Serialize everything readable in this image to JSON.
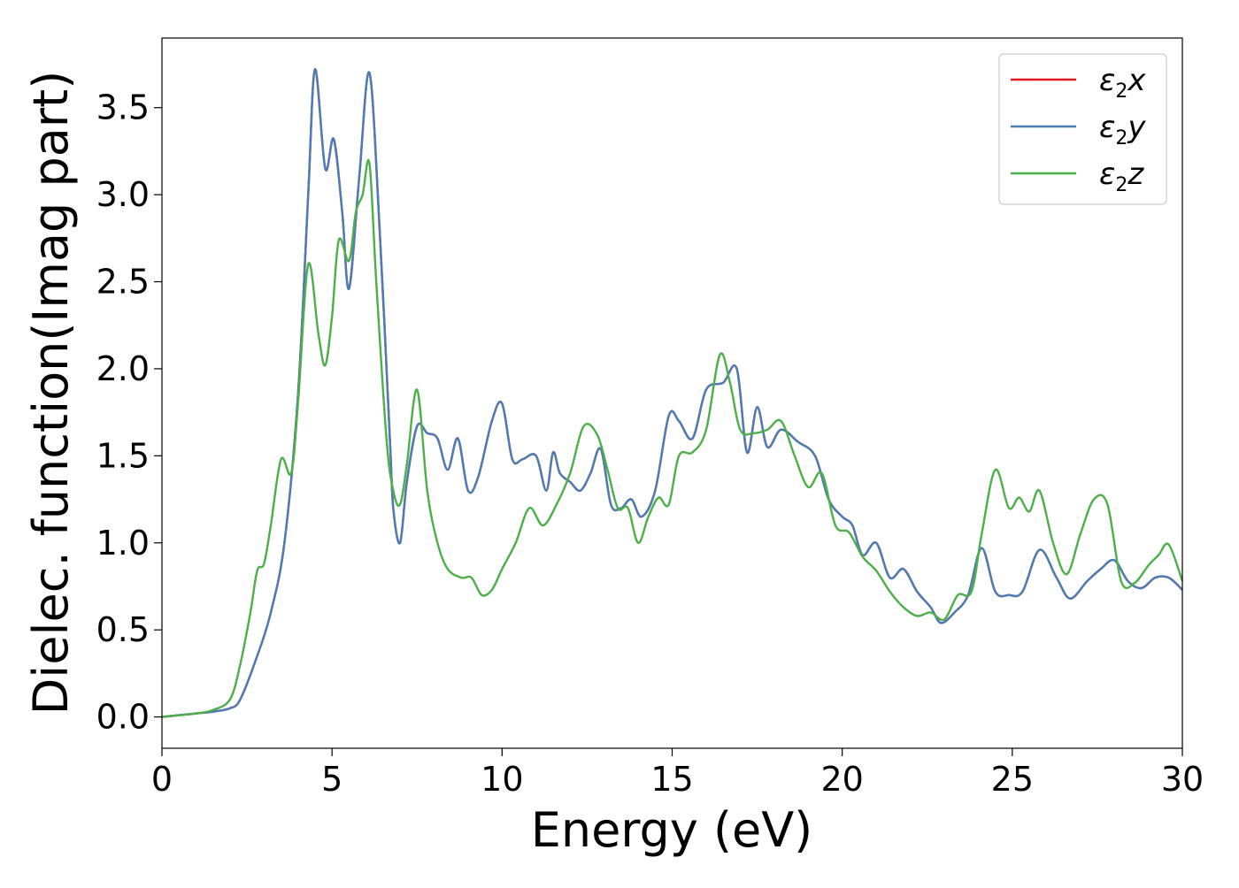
{
  "chart_data": {
    "type": "line",
    "title": "",
    "xlabel": "Energy (eV)",
    "ylabel": "Dielec. function(Imag part)",
    "xlim": [
      0,
      30
    ],
    "ylim": [
      -0.18,
      3.9
    ],
    "xticks": [
      0,
      5,
      10,
      15,
      20,
      25,
      30
    ],
    "yticks": [
      0.0,
      0.5,
      1.0,
      1.5,
      2.0,
      2.5,
      3.0,
      3.5
    ],
    "xtick_labels": [
      "0",
      "5",
      "10",
      "15",
      "20",
      "25",
      "30"
    ],
    "ytick_labels": [
      "0.0",
      "0.5",
      "1.0",
      "1.5",
      "2.0",
      "2.5",
      "3.0",
      "3.5"
    ],
    "grid": false,
    "legend_position": "top-right",
    "series": [
      {
        "name": "ε2x",
        "legend_base": "ε",
        "legend_sub": "2",
        "legend_var": "x",
        "color": "#e41a1c",
        "x": [
          0,
          1,
          1.5,
          2,
          2.3,
          2.8,
          3.2,
          3.6,
          4.0,
          4.3,
          4.5,
          4.8,
          5.05,
          5.3,
          5.5,
          5.8,
          6.1,
          6.4,
          6.7,
          6.8,
          7.0,
          7.2,
          7.5,
          7.8,
          8.1,
          8.4,
          8.7,
          9.0,
          9.3,
          9.7,
          10.0,
          10.3,
          10.6,
          11.0,
          11.3,
          11.5,
          11.7,
          12.0,
          12.3,
          12.6,
          12.9,
          13.2,
          13.5,
          13.8,
          14.1,
          14.5,
          14.9,
          15.2,
          15.6,
          16.0,
          16.5,
          16.9,
          17.2,
          17.5,
          17.8,
          18.2,
          18.7,
          19.2,
          19.6,
          20.0,
          20.3,
          20.6,
          21.0,
          21.4,
          21.8,
          22.2,
          22.6,
          22.9,
          23.3,
          23.7,
          24.1,
          24.5,
          24.9,
          25.3,
          25.8,
          26.3,
          26.7,
          27.2,
          27.6,
          28.0,
          28.4,
          28.8,
          29.2,
          29.6,
          30.0
        ],
        "values": [
          0.0,
          0.02,
          0.03,
          0.05,
          0.1,
          0.35,
          0.6,
          1.0,
          1.85,
          3.0,
          3.72,
          3.15,
          3.32,
          2.9,
          2.46,
          3.1,
          3.7,
          2.8,
          1.6,
          1.2,
          1.0,
          1.35,
          1.67,
          1.63,
          1.6,
          1.42,
          1.6,
          1.3,
          1.38,
          1.7,
          1.8,
          1.48,
          1.48,
          1.5,
          1.3,
          1.52,
          1.4,
          1.35,
          1.3,
          1.4,
          1.54,
          1.22,
          1.2,
          1.25,
          1.15,
          1.3,
          1.73,
          1.7,
          1.6,
          1.88,
          1.92,
          2.0,
          1.52,
          1.78,
          1.55,
          1.65,
          1.58,
          1.5,
          1.25,
          1.15,
          1.1,
          0.93,
          1.0,
          0.8,
          0.85,
          0.72,
          0.63,
          0.54,
          0.6,
          0.7,
          0.97,
          0.72,
          0.7,
          0.72,
          0.96,
          0.8,
          0.68,
          0.78,
          0.85,
          0.9,
          0.78,
          0.74,
          0.8,
          0.8,
          0.73
        ]
      },
      {
        "name": "ε2y",
        "legend_base": "ε",
        "legend_sub": "2",
        "legend_var": "y",
        "color": "#4a7db5",
        "x": [
          0,
          1,
          1.5,
          2,
          2.3,
          2.8,
          3.2,
          3.6,
          4.0,
          4.3,
          4.5,
          4.8,
          5.05,
          5.3,
          5.5,
          5.8,
          6.1,
          6.4,
          6.7,
          6.8,
          7.0,
          7.2,
          7.5,
          7.8,
          8.1,
          8.4,
          8.7,
          9.0,
          9.3,
          9.7,
          10.0,
          10.3,
          10.6,
          11.0,
          11.3,
          11.5,
          11.7,
          12.0,
          12.3,
          12.6,
          12.9,
          13.2,
          13.5,
          13.8,
          14.1,
          14.5,
          14.9,
          15.2,
          15.6,
          16.0,
          16.5,
          16.9,
          17.2,
          17.5,
          17.8,
          18.2,
          18.7,
          19.2,
          19.6,
          20.0,
          20.3,
          20.6,
          21.0,
          21.4,
          21.8,
          22.2,
          22.6,
          22.9,
          23.3,
          23.7,
          24.1,
          24.5,
          24.9,
          25.3,
          25.8,
          26.3,
          26.7,
          27.2,
          27.6,
          28.0,
          28.4,
          28.8,
          29.2,
          29.6,
          30.0
        ],
        "values": [
          0.0,
          0.02,
          0.03,
          0.05,
          0.1,
          0.35,
          0.6,
          1.0,
          1.85,
          3.0,
          3.72,
          3.15,
          3.32,
          2.9,
          2.46,
          3.1,
          3.7,
          2.8,
          1.6,
          1.2,
          1.0,
          1.35,
          1.67,
          1.63,
          1.6,
          1.42,
          1.6,
          1.3,
          1.38,
          1.7,
          1.8,
          1.48,
          1.48,
          1.5,
          1.3,
          1.52,
          1.4,
          1.35,
          1.3,
          1.4,
          1.54,
          1.22,
          1.2,
          1.25,
          1.15,
          1.3,
          1.73,
          1.7,
          1.6,
          1.88,
          1.92,
          2.0,
          1.52,
          1.78,
          1.55,
          1.65,
          1.58,
          1.5,
          1.25,
          1.15,
          1.1,
          0.93,
          1.0,
          0.8,
          0.85,
          0.72,
          0.63,
          0.54,
          0.6,
          0.7,
          0.97,
          0.72,
          0.7,
          0.72,
          0.96,
          0.8,
          0.68,
          0.78,
          0.85,
          0.9,
          0.78,
          0.74,
          0.8,
          0.8,
          0.73
        ]
      },
      {
        "name": "ε2z",
        "legend_base": "ε",
        "legend_sub": "2",
        "legend_var": "z",
        "color": "#4daf4a",
        "x": [
          0,
          1,
          1.5,
          2,
          2.3,
          2.6,
          2.8,
          3.0,
          3.2,
          3.5,
          3.8,
          4.0,
          4.3,
          4.6,
          4.8,
          5.0,
          5.2,
          5.5,
          5.7,
          5.9,
          6.1,
          6.3,
          6.6,
          6.8,
          7.0,
          7.2,
          7.5,
          7.8,
          8.1,
          8.4,
          8.8,
          9.1,
          9.4,
          9.7,
          10.0,
          10.4,
          10.8,
          11.2,
          11.6,
          12.0,
          12.4,
          12.8,
          13.1,
          13.4,
          13.7,
          14.0,
          14.3,
          14.6,
          14.9,
          15.2,
          15.6,
          16.0,
          16.4,
          16.7,
          17.0,
          17.4,
          17.8,
          18.2,
          18.6,
          19.0,
          19.4,
          19.8,
          20.2,
          20.6,
          21.0,
          21.4,
          21.8,
          22.2,
          22.6,
          23.0,
          23.4,
          23.8,
          24.1,
          24.5,
          24.9,
          25.2,
          25.5,
          25.8,
          26.2,
          26.6,
          27.0,
          27.4,
          27.8,
          28.2,
          28.6,
          29.0,
          29.3,
          29.6,
          30.0
        ],
        "values": [
          0.0,
          0.02,
          0.04,
          0.1,
          0.3,
          0.6,
          0.84,
          0.88,
          1.1,
          1.48,
          1.4,
          1.8,
          2.6,
          2.2,
          2.02,
          2.3,
          2.74,
          2.62,
          2.9,
          3.0,
          3.18,
          2.5,
          1.6,
          1.3,
          1.22,
          1.45,
          1.88,
          1.3,
          1.0,
          0.85,
          0.8,
          0.8,
          0.7,
          0.73,
          0.85,
          1.0,
          1.2,
          1.1,
          1.22,
          1.4,
          1.67,
          1.62,
          1.42,
          1.2,
          1.2,
          1.0,
          1.15,
          1.26,
          1.22,
          1.5,
          1.52,
          1.65,
          2.08,
          1.92,
          1.65,
          1.63,
          1.65,
          1.7,
          1.5,
          1.32,
          1.4,
          1.1,
          1.06,
          0.92,
          0.84,
          0.72,
          0.63,
          0.58,
          0.6,
          0.56,
          0.7,
          0.72,
          1.05,
          1.42,
          1.2,
          1.26,
          1.18,
          1.3,
          1.0,
          0.82,
          1.05,
          1.25,
          1.22,
          0.78,
          0.77,
          0.87,
          0.93,
          0.99,
          0.78
        ]
      }
    ]
  }
}
